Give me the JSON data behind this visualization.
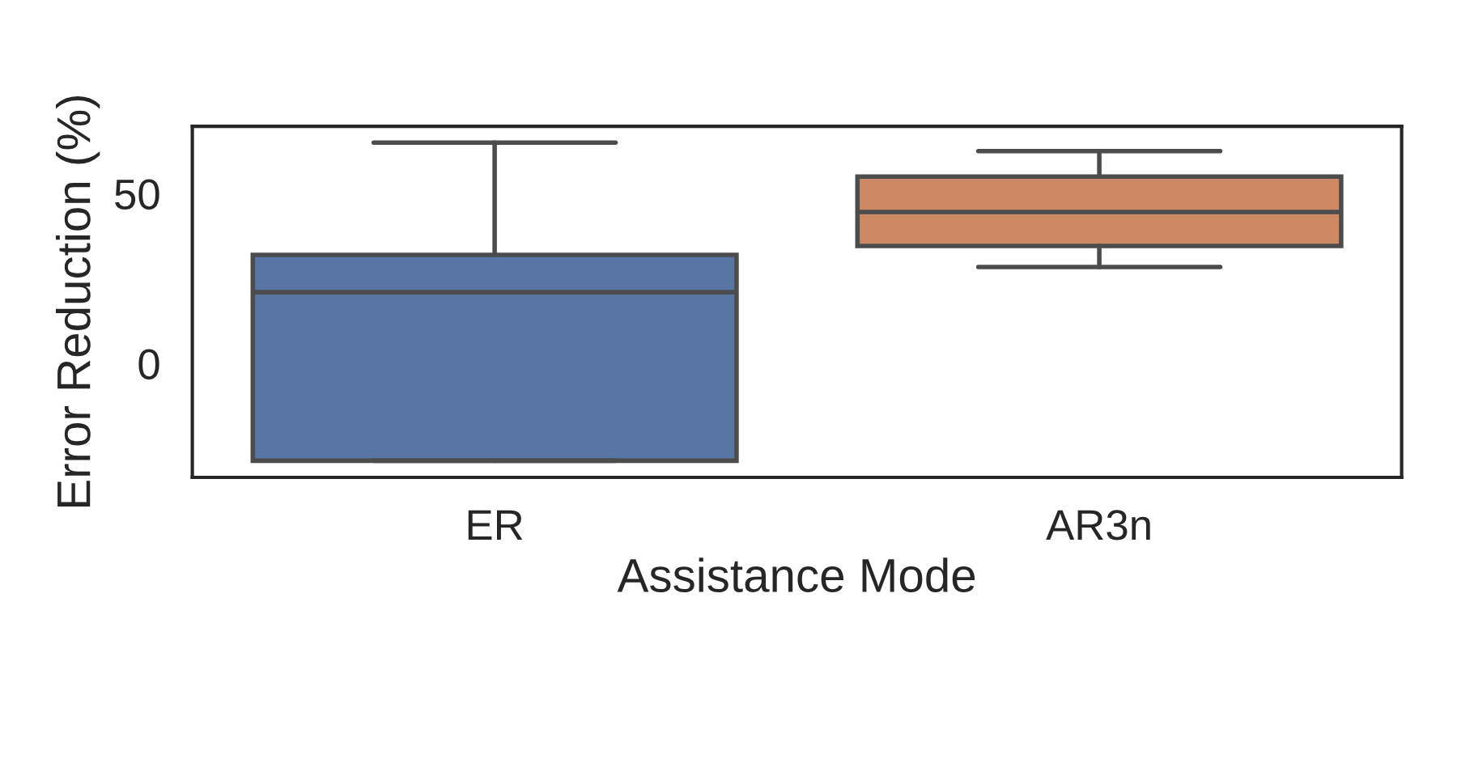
{
  "chart_data": {
    "type": "box",
    "xlabel": "Assistance Mode",
    "ylabel": "Error Reduction (%)",
    "categories": [
      "ER",
      "AR3n"
    ],
    "boxes": [
      {
        "low": -28.6,
        "q1": -28.6,
        "median": 21,
        "q3": 32,
        "high": 65
      },
      {
        "low": 28.4,
        "q1": 34.6,
        "median": 44.6,
        "q3": 55,
        "high": 62.5
      }
    ],
    "colors": [
      "#5975a4",
      "#cc8963"
    ],
    "ylim": [
      -33.5,
      69.8
    ],
    "yticks": [
      0,
      50
    ]
  }
}
